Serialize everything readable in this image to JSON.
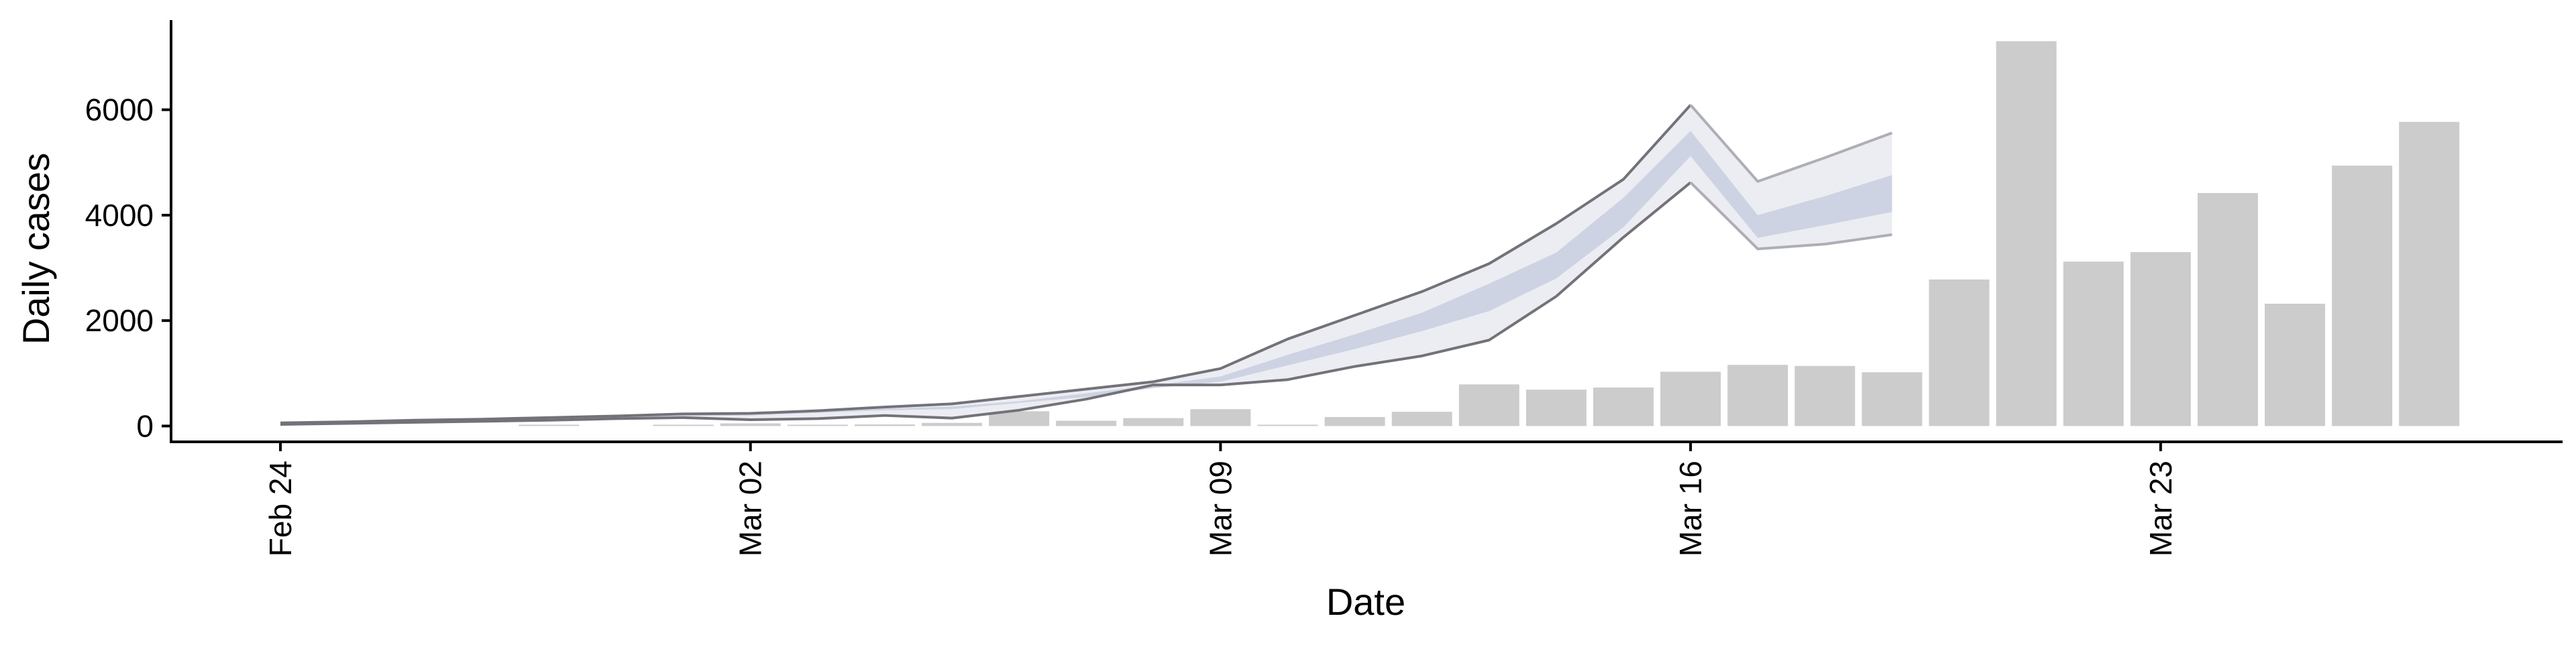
{
  "chart_data": {
    "type": "bar",
    "xlabel": "Date",
    "ylabel": "Daily cases",
    "ylim": [
      -300,
      7700
    ],
    "y_ticks": [
      "0",
      "2000",
      "4000",
      "6000"
    ],
    "x_ticks": [
      {
        "label": "Feb 24",
        "day": 0
      },
      {
        "label": "Mar 02",
        "day": 7
      },
      {
        "label": "Mar 09",
        "day": 14
      },
      {
        "label": "Mar 16",
        "day": 21
      },
      {
        "label": "Mar 23",
        "day": 28
      }
    ],
    "grid": false,
    "legend": "none",
    "bars": {
      "name": "",
      "dates": [
        "Feb 28",
        "Mar 01",
        "Mar 02",
        "Mar 03",
        "Mar 04",
        "Mar 05",
        "Mar 06",
        "Mar 07",
        "Mar 08",
        "Mar 09",
        "Mar 10",
        "Mar 11",
        "Mar 12",
        "Mar 13",
        "Mar 14",
        "Mar 15",
        "Mar 16",
        "Mar 17",
        "Mar 18",
        "Mar 19",
        "Mar 20",
        "Mar 21",
        "Mar 22",
        "Mar 23",
        "Mar 24",
        "Mar 25",
        "Mar 26",
        "Mar 27"
      ],
      "values": [
        20,
        0,
        50,
        20,
        30,
        60,
        280,
        100,
        150,
        320,
        10,
        170,
        270,
        790,
        690,
        730,
        1030,
        1160,
        1140,
        1020,
        2780,
        7300,
        3120,
        3300,
        4420,
        2320,
        4940,
        5770
      ]
    },
    "forecast": {
      "dates": [
        "Feb 24",
        "Feb 25",
        "Feb 26",
        "Feb 27",
        "Feb 28",
        "Feb 29",
        "Mar 01",
        "Mar 02",
        "Mar 03",
        "Mar 04",
        "Mar 05",
        "Mar 06",
        "Mar 07",
        "Mar 08",
        "Mar 09",
        "Mar 10",
        "Mar 11",
        "Mar 12",
        "Mar 13",
        "Mar 14",
        "Mar 15",
        "Mar 16",
        "Mar 17",
        "Mar 18",
        "Mar 19"
      ],
      "outer_upper": [
        60,
        80,
        110,
        130,
        160,
        190,
        230,
        240,
        290,
        360,
        420,
        560,
        700,
        840,
        1090,
        1650,
        2100,
        2550,
        3080,
        3840,
        4680,
        6090,
        4640,
        5090,
        5560
      ],
      "inner_upper": [
        50,
        70,
        100,
        120,
        140,
        170,
        210,
        220,
        270,
        330,
        370,
        470,
        620,
        770,
        940,
        1350,
        1740,
        2150,
        2700,
        3290,
        4330,
        5600,
        4000,
        4360,
        4760
      ],
      "inner_lower": [
        40,
        60,
        90,
        110,
        130,
        160,
        190,
        200,
        250,
        300,
        320,
        440,
        550,
        720,
        840,
        1150,
        1460,
        1800,
        2180,
        2800,
        3770,
        5120,
        3570,
        3810,
        4060
      ],
      "outer_lower": [
        30,
        50,
        70,
        90,
        110,
        140,
        160,
        120,
        140,
        200,
        150,
        300,
        510,
        780,
        780,
        880,
        1130,
        1330,
        1630,
        2460,
        3580,
        4620,
        3360,
        3450,
        3630
      ]
    },
    "colors": {
      "bar": "#cccccc",
      "outer_band": "#ecedf3",
      "inner_band": "#cdd3e2",
      "outline_dark": "#727278",
      "outline_light": "#aeaeb6",
      "axis": "#000000"
    }
  }
}
